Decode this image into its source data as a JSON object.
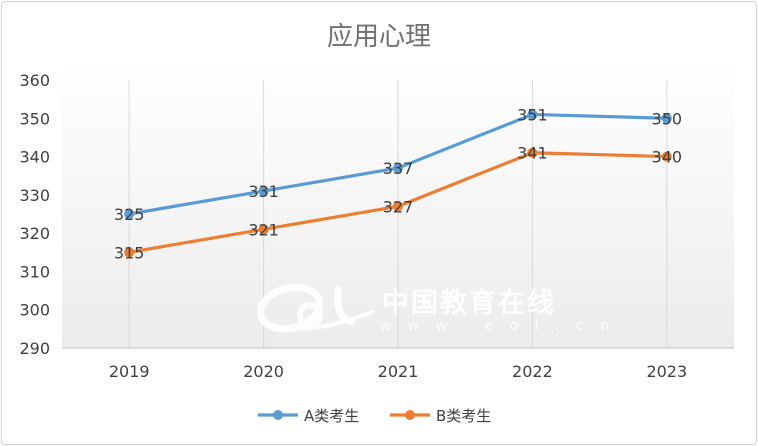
{
  "chart_data": {
    "type": "line",
    "title": "应用心理",
    "categories": [
      "2019",
      "2020",
      "2021",
      "2022",
      "2023"
    ],
    "series": [
      {
        "name": "A类考生",
        "values": [
          325,
          331,
          337,
          351,
          350
        ],
        "color": "#5b9bd5"
      },
      {
        "name": "B类考生",
        "values": [
          315,
          321,
          327,
          341,
          340
        ],
        "color": "#ed7d31"
      }
    ],
    "ylim": [
      290,
      360
    ],
    "yticks": [
      "290",
      "300",
      "310",
      "320",
      "330",
      "340",
      "350",
      "360"
    ],
    "grid": "vertical",
    "legend": "bottom",
    "data_labels": true
  },
  "watermark": {
    "logo": "eol",
    "name": "中国教育在线",
    "url": "w w w . e o l . c n"
  }
}
